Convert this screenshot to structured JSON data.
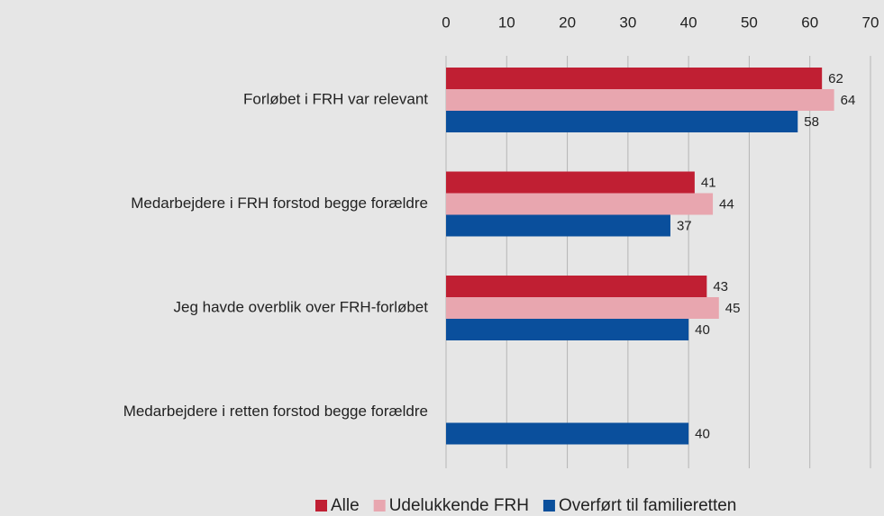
{
  "chart_data": {
    "type": "barh",
    "categories": [
      "Forløbet i FRH var relevant",
      "Medarbejdere i FRH forstod begge forældre",
      "Jeg havde overblik over FRH-forløbet",
      "Medarbejdere i retten forstod begge forældre"
    ],
    "series": [
      {
        "name": "Alle",
        "color": "#c01f33",
        "values": [
          62,
          41,
          43,
          null
        ]
      },
      {
        "name": "Udelukkende FRH",
        "color": "#e8a6af",
        "values": [
          64,
          44,
          45,
          null
        ]
      },
      {
        "name": "Overført til familieretten",
        "color": "#0a4f9c",
        "values": [
          58,
          37,
          40,
          40
        ]
      }
    ],
    "xlim": [
      0,
      70
    ],
    "xticks": [
      0,
      10,
      20,
      30,
      40,
      50,
      60,
      70
    ],
    "grid": true,
    "legend": "bottom"
  }
}
